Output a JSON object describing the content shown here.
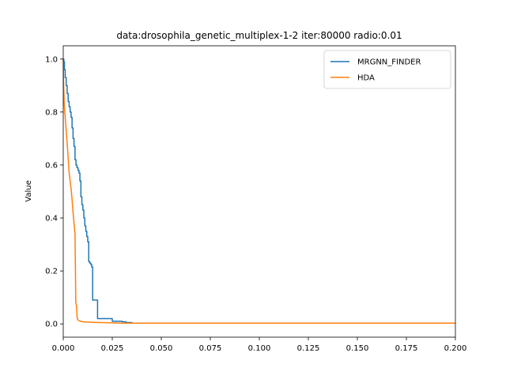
{
  "chart_data": {
    "type": "line",
    "title": "data:drosophila_genetic_multiplex-1-2 iter:80000 radio:0.01",
    "xlabel": "",
    "ylabel": "Value",
    "xlim": [
      0.0,
      0.2
    ],
    "ylim": [
      -0.05,
      1.05
    ],
    "xticks": [
      "0.000",
      "0.025",
      "0.050",
      "0.075",
      "0.100",
      "0.125",
      "0.150",
      "0.175",
      "0.200"
    ],
    "yticks": [
      "0.0",
      "0.2",
      "0.4",
      "0.6",
      "0.8",
      "1.0"
    ],
    "grid": false,
    "legend_position": "top-right",
    "colors": {
      "MRGNN_FINDER": "#1f77b4",
      "HDA": "#ff7f0e"
    },
    "series": [
      {
        "name": "MRGNN_FINDER",
        "step": true,
        "x": [
          0.0,
          0.0003,
          0.0006,
          0.001,
          0.0015,
          0.002,
          0.0025,
          0.003,
          0.0035,
          0.004,
          0.0045,
          0.005,
          0.0055,
          0.006,
          0.0065,
          0.007,
          0.0075,
          0.008,
          0.0085,
          0.009,
          0.0095,
          0.01,
          0.0105,
          0.011,
          0.0115,
          0.012,
          0.0125,
          0.013,
          0.0135,
          0.014,
          0.0145,
          0.015,
          0.016,
          0.0165,
          0.017,
          0.0175,
          0.019,
          0.02,
          0.0205,
          0.022,
          0.025,
          0.0265,
          0.0285,
          0.03,
          0.032,
          0.035,
          0.2
        ],
        "y": [
          1.0,
          0.99,
          0.96,
          0.93,
          0.9,
          0.87,
          0.84,
          0.82,
          0.8,
          0.78,
          0.74,
          0.7,
          0.67,
          0.62,
          0.6,
          0.59,
          0.58,
          0.57,
          0.54,
          0.48,
          0.45,
          0.43,
          0.4,
          0.37,
          0.35,
          0.33,
          0.31,
          0.235,
          0.23,
          0.225,
          0.215,
          0.09,
          0.09,
          0.09,
          0.09,
          0.02,
          0.02,
          0.02,
          0.02,
          0.02,
          0.01,
          0.01,
          0.01,
          0.008,
          0.005,
          0.003,
          0.003
        ]
      },
      {
        "name": "HDA",
        "step": false,
        "x": [
          0.0,
          0.0002,
          0.0005,
          0.001,
          0.0015,
          0.002,
          0.0025,
          0.003,
          0.0035,
          0.004,
          0.0045,
          0.005,
          0.0055,
          0.006,
          0.0064,
          0.0067,
          0.0069,
          0.007,
          0.0072,
          0.0075,
          0.008,
          0.009,
          0.01,
          0.012,
          0.015,
          0.02,
          0.025,
          0.03,
          0.2
        ],
        "y": [
          1.0,
          0.9,
          0.83,
          0.78,
          0.73,
          0.68,
          0.63,
          0.57,
          0.54,
          0.51,
          0.47,
          0.42,
          0.38,
          0.34,
          0.08,
          0.07,
          0.05,
          0.03,
          0.02,
          0.015,
          0.012,
          0.01,
          0.008,
          0.007,
          0.006,
          0.005,
          0.004,
          0.003,
          0.003
        ]
      }
    ]
  }
}
